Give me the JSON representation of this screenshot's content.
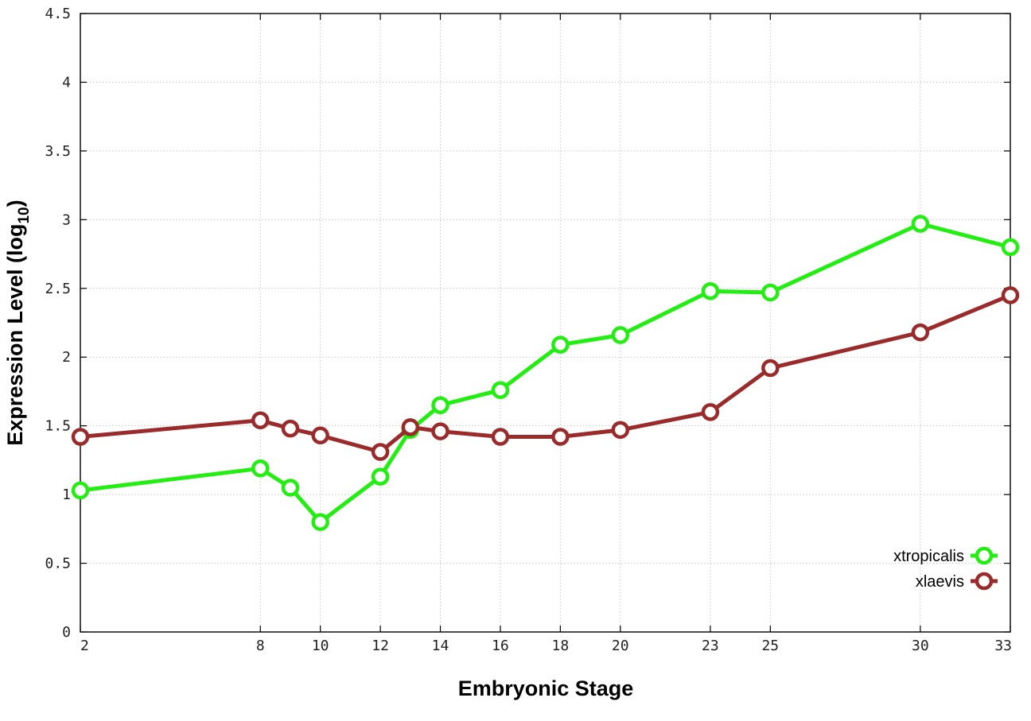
{
  "chart_data": {
    "type": "line",
    "xlabel": "Embryonic Stage",
    "ylabel": {
      "prefix": "Expression Level (log",
      "subscript": "10",
      "suffix": ")"
    },
    "x": [
      2,
      8,
      9,
      10,
      12,
      13,
      14,
      16,
      18,
      20,
      23,
      25,
      30,
      33
    ],
    "x_ticks": [
      2,
      8,
      10,
      12,
      14,
      16,
      18,
      20,
      23,
      25,
      30,
      33
    ],
    "y_ticks": [
      "0",
      "0.5",
      "1",
      "1.5",
      "2",
      "2.5",
      "3",
      "3.5",
      "4",
      "4.5"
    ],
    "xlim": [
      2,
      33
    ],
    "ylim": [
      0,
      4.5
    ],
    "grid": true,
    "legend_position": "bottom-right",
    "series": [
      {
        "name": "xtropicalis",
        "color": "#22ee11",
        "values": [
          1.03,
          1.19,
          1.05,
          0.8,
          1.13,
          1.47,
          1.65,
          1.76,
          2.09,
          2.16,
          2.48,
          2.47,
          2.97,
          2.8
        ]
      },
      {
        "name": "xlaevis",
        "color": "#9b2a2a",
        "values": [
          1.42,
          1.54,
          1.48,
          1.43,
          1.31,
          1.49,
          1.46,
          1.42,
          1.42,
          1.47,
          1.6,
          1.92,
          2.18,
          2.45
        ]
      }
    ]
  }
}
